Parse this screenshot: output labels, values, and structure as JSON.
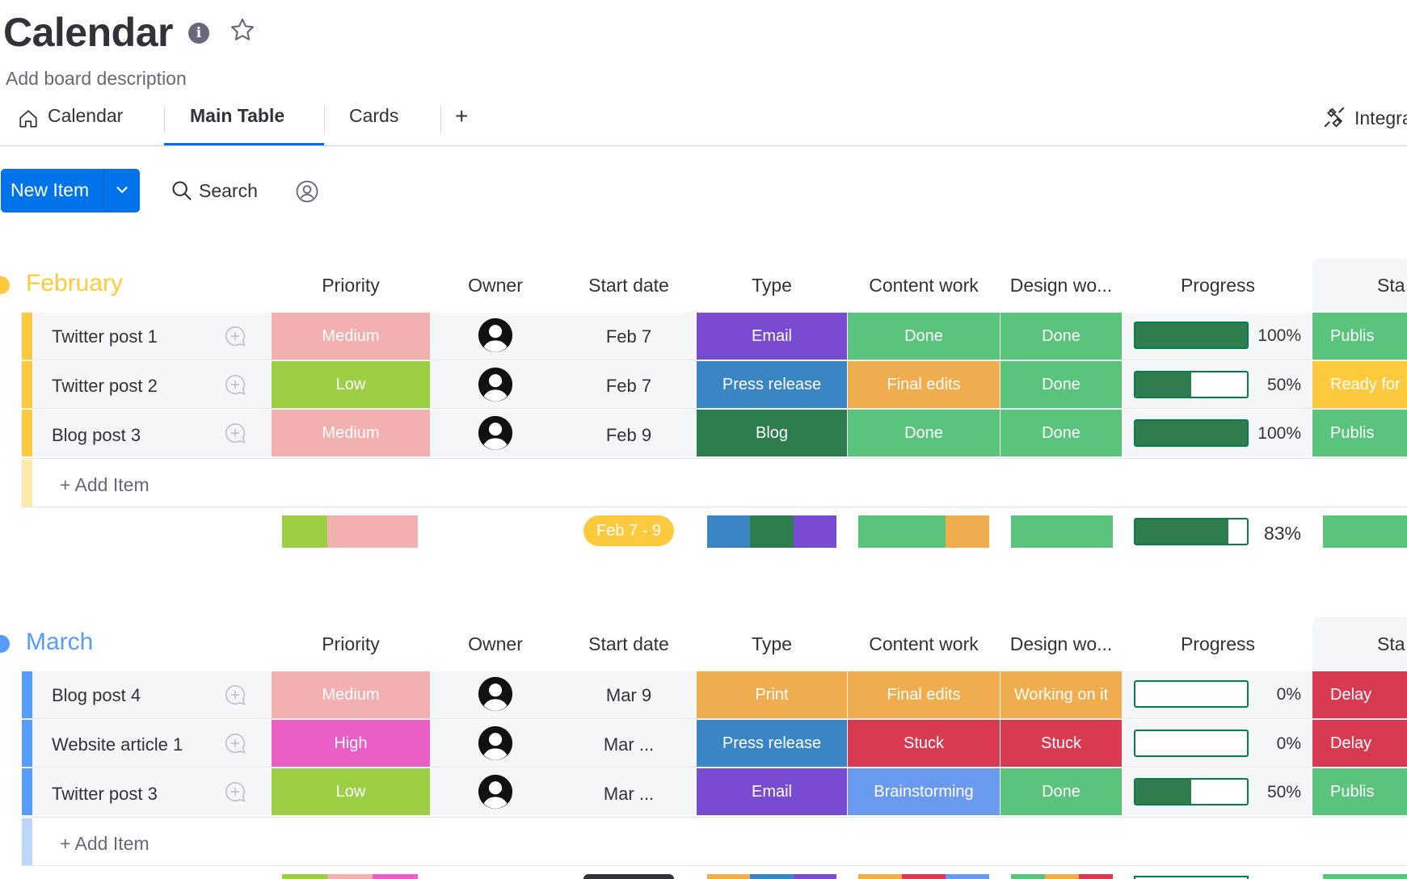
{
  "board": {
    "title": "Calendar",
    "description": "Add board description"
  },
  "tabs": [
    {
      "label": "Calendar",
      "icon": "home-icon"
    },
    {
      "label": "Main Table",
      "active": true
    },
    {
      "label": "Cards"
    },
    {
      "label": "+"
    }
  ],
  "integrate": {
    "label": "Integra",
    "icon": "integrate-icon"
  },
  "toolbar": {
    "new_item_label": "New Item",
    "search_label": "Search",
    "person_filter_icon": "person-icon"
  },
  "columns": [
    "Priority",
    "Owner",
    "Start date",
    "Type",
    "Content work",
    "Design wo...",
    "Progress",
    "Sta"
  ],
  "colors": {
    "medium": "#f2b0b0",
    "low": "#9ccf43",
    "high": "#ea5fc6",
    "email": "#784bd1",
    "press_release": "#3a85c3",
    "blog": "#2e7d4f",
    "print": "#f0ad4e",
    "done": "#5ac47d",
    "final_edits": "#f0ad4e",
    "stuck": "#d83a52",
    "working_on_it": "#f0ad4e",
    "brainstorming": "#6a9af0",
    "publish": "#5ac47d",
    "ready": "#fdca3d",
    "delayed": "#d83a52",
    "february_accent": "#fdca3d",
    "march_accent": "#579bfc"
  },
  "groups": [
    {
      "title": "February",
      "color": "#fdca3d",
      "rows": [
        {
          "name": "Twitter post 1",
          "priority": "Medium",
          "priority_color": "#f2b0b0",
          "date": "Feb 7",
          "type": "Email",
          "type_color": "#784bd1",
          "content": "Done",
          "content_color": "#5ac47d",
          "design": "Done",
          "design_color": "#5ac47d",
          "progress": 100,
          "progress_text": "100%",
          "status": "Publis",
          "status_color": "#5ac47d"
        },
        {
          "name": "Twitter post 2",
          "priority": "Low",
          "priority_color": "#9ccf43",
          "date": "Feb 7",
          "type": "Press release",
          "type_color": "#3a85c3",
          "content": "Final edits",
          "content_color": "#f0ad4e",
          "design": "Done",
          "design_color": "#5ac47d",
          "progress": 50,
          "progress_text": "50%",
          "status": "Ready for",
          "status_color": "#fdca3d"
        },
        {
          "name": "Blog post 3",
          "priority": "Medium",
          "priority_color": "#f2b0b0",
          "date": "Feb 9",
          "type": "Blog",
          "type_color": "#2e7d4f",
          "content": "Done",
          "content_color": "#5ac47d",
          "design": "Done",
          "design_color": "#5ac47d",
          "progress": 100,
          "progress_text": "100%",
          "status": "Publis",
          "status_color": "#5ac47d"
        }
      ],
      "add_item": "+ Add Item",
      "summary": {
        "date_range": "Feb 7 - 9",
        "progress": 83,
        "progress_text": "83%"
      }
    },
    {
      "title": "March",
      "color": "#579bfc",
      "rows": [
        {
          "name": "Blog post 4",
          "priority": "Medium",
          "priority_color": "#f2b0b0",
          "date": "Mar 9",
          "type": "Print",
          "type_color": "#f0ad4e",
          "content": "Final edits",
          "content_color": "#f0ad4e",
          "design": "Working on it",
          "design_color": "#f0ad4e",
          "progress": 0,
          "progress_text": "0%",
          "status": "Delay",
          "status_color": "#d83a52"
        },
        {
          "name": "Website article 1",
          "priority": "High",
          "priority_color": "#ea5fc6",
          "date": "Mar ...",
          "type": "Press release",
          "type_color": "#3a85c3",
          "content": "Stuck",
          "content_color": "#d83a52",
          "design": "Stuck",
          "design_color": "#d83a52",
          "progress": 0,
          "progress_text": "0%",
          "status": "Delay",
          "status_color": "#d83a52"
        },
        {
          "name": "Twitter post 3",
          "priority": "Low",
          "priority_color": "#9ccf43",
          "date": "Mar ...",
          "type": "Email",
          "type_color": "#784bd1",
          "content": "Brainstorming",
          "content_color": "#6a9af0",
          "design": "Done",
          "design_color": "#5ac47d",
          "progress": 50,
          "progress_text": "50%",
          "status": "Publis",
          "status_color": "#5ac47d"
        }
      ],
      "add_item": "+ Add Item"
    }
  ]
}
